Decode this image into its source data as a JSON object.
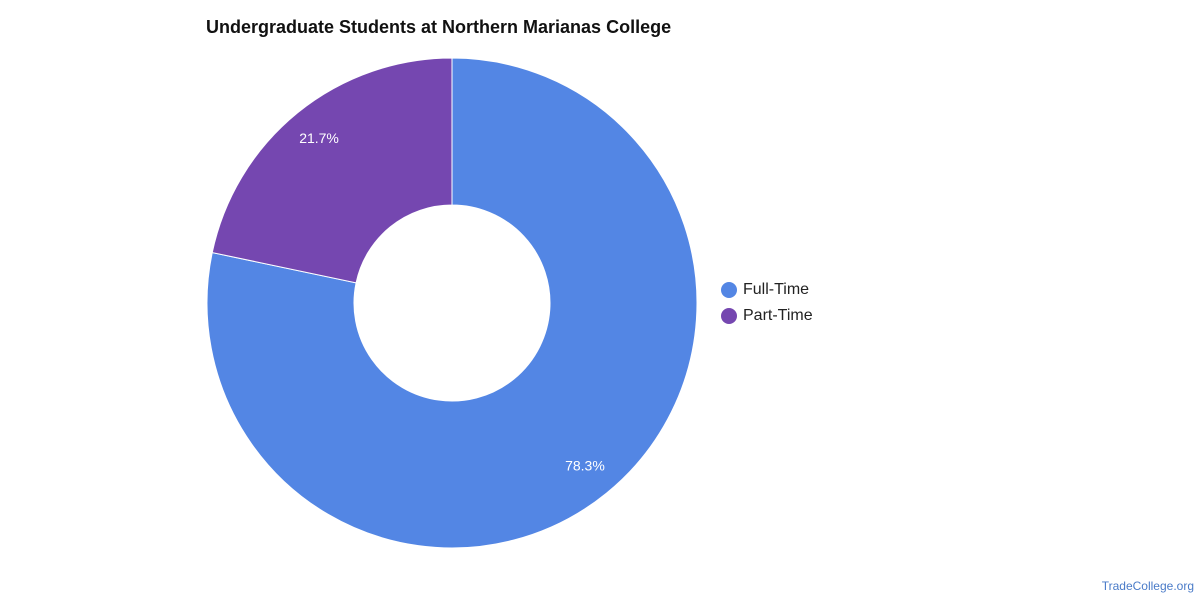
{
  "chart_data": {
    "type": "donut",
    "title": "Undergraduate Students at Northern Marianas College",
    "categories": [
      "Full-Time",
      "Part-Time"
    ],
    "values": [
      78.3,
      21.7
    ],
    "value_labels": [
      "78.3%",
      "21.7%"
    ],
    "colors": [
      "#5386e4",
      "#7547b0"
    ],
    "legend": "right",
    "watermark": "TradeCollege.org"
  }
}
